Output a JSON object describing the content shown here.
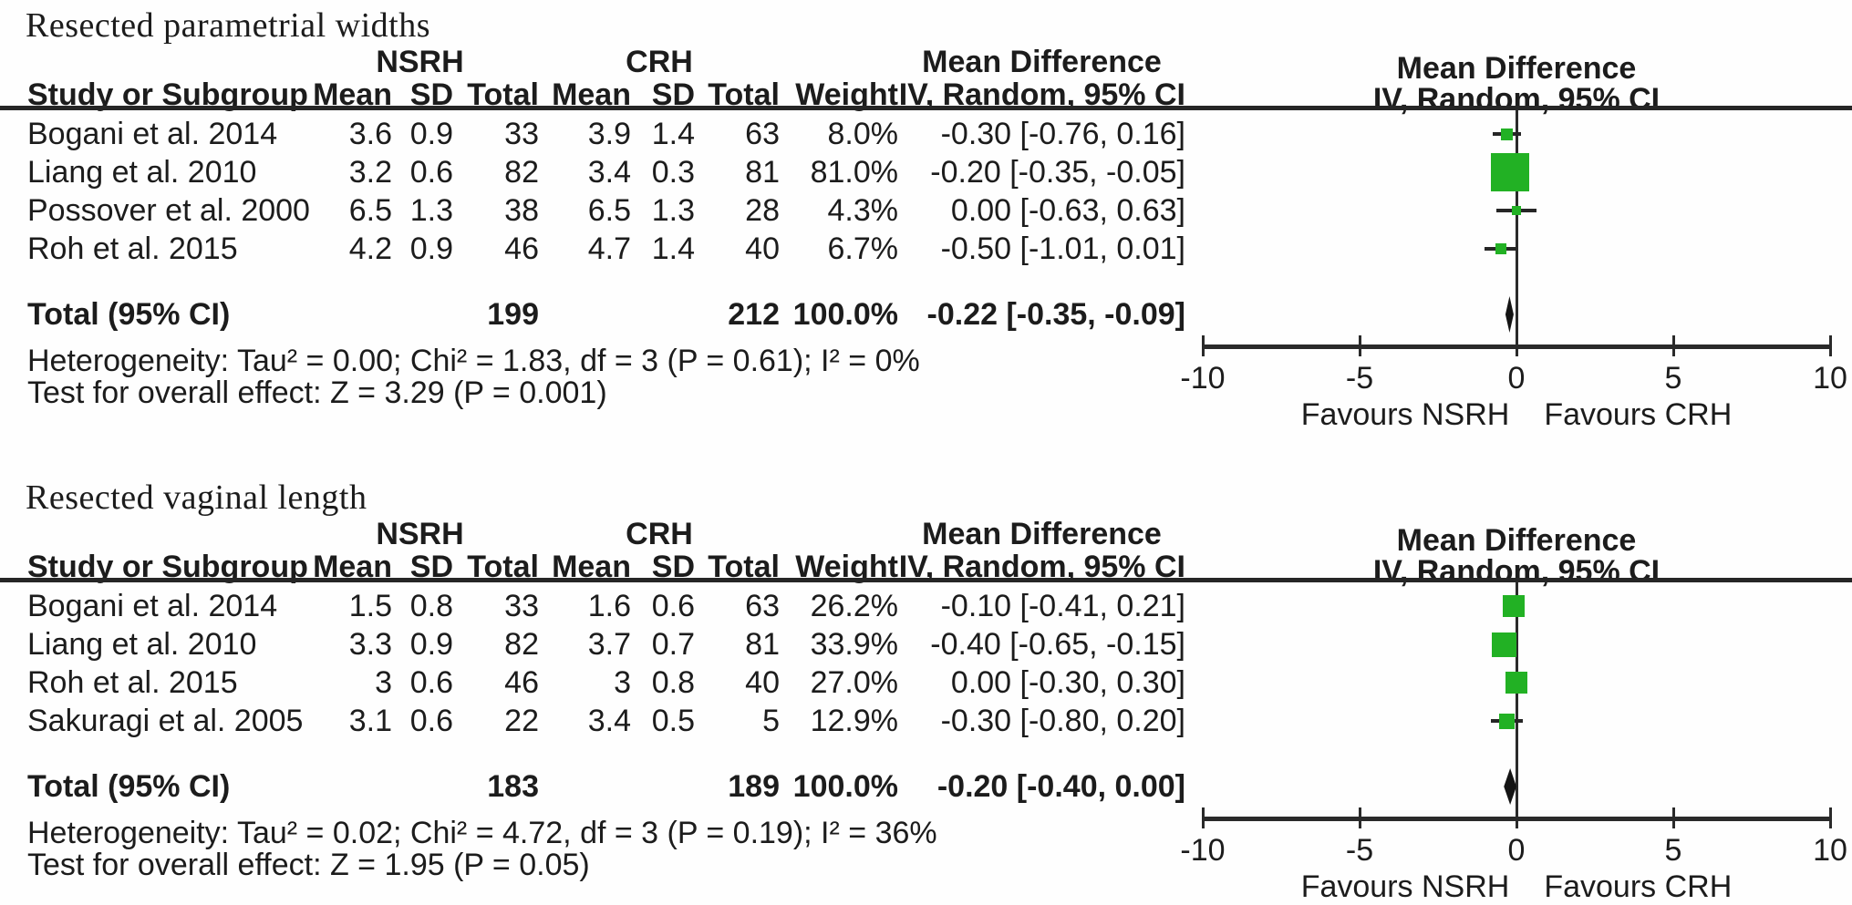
{
  "colors": {
    "marker_green": "#22b124",
    "diamond_black": "#141414",
    "line_dark": "#262626"
  },
  "chart_data": [
    {
      "type": "forest",
      "section_title": "Resected parametrial widths",
      "headers": {
        "group1": "NSRH",
        "group2": "CRH",
        "study": "Study or Subgroup",
        "mean": "Mean",
        "sd": "SD",
        "total": "Total",
        "weight": "Weight",
        "effect_title": "Mean Difference",
        "effect_sub": "IV, Random, 95% CI",
        "plot_title": "Mean Difference",
        "plot_sub": "IV, Random, 95% CI"
      },
      "x_axis": {
        "min": -10,
        "max": 10,
        "ticks": [
          -10,
          -5,
          0,
          5,
          10
        ],
        "label_left": "Favours NSRH",
        "label_right": "Favours CRH"
      },
      "studies": [
        {
          "study": "Bogani et al. 2014",
          "nsrh_mean": 3.6,
          "nsrh_sd": 0.9,
          "nsrh_total": 33,
          "crh_mean": 3.9,
          "crh_sd": 1.4,
          "crh_total": 63,
          "weight_pct": 8.0,
          "weight_label": "8.0%",
          "md": -0.3,
          "ci_low": -0.76,
          "ci_high": 0.16,
          "effect_label": "-0.30 [-0.76, 0.16]"
        },
        {
          "study": "Liang et al. 2010",
          "nsrh_mean": 3.2,
          "nsrh_sd": 0.6,
          "nsrh_total": 82,
          "crh_mean": 3.4,
          "crh_sd": 0.3,
          "crh_total": 81,
          "weight_pct": 81.0,
          "weight_label": "81.0%",
          "md": -0.2,
          "ci_low": -0.35,
          "ci_high": -0.05,
          "effect_label": "-0.20 [-0.35, -0.05]"
        },
        {
          "study": "Possover et al. 2000",
          "nsrh_mean": 6.5,
          "nsrh_sd": 1.3,
          "nsrh_total": 38,
          "crh_mean": 6.5,
          "crh_sd": 1.3,
          "crh_total": 28,
          "weight_pct": 4.3,
          "weight_label": "4.3%",
          "md": 0.0,
          "ci_low": -0.63,
          "ci_high": 0.63,
          "effect_label": "0.00 [-0.63, 0.63]"
        },
        {
          "study": "Roh et al. 2015",
          "nsrh_mean": 4.2,
          "nsrh_sd": 0.9,
          "nsrh_total": 46,
          "crh_mean": 4.7,
          "crh_sd": 1.4,
          "crh_total": 40,
          "weight_pct": 6.7,
          "weight_label": "6.7%",
          "md": -0.5,
          "ci_low": -1.01,
          "ci_high": 0.01,
          "effect_label": "-0.50 [-1.01, 0.01]"
        }
      ],
      "total": {
        "label": "Total (95% CI)",
        "nsrh_total": 199,
        "crh_total": 212,
        "weight_label": "100.0%",
        "md": -0.22,
        "ci_low": -0.35,
        "ci_high": -0.09,
        "effect_label": "-0.22 [-0.35, -0.09]"
      },
      "heterogeneity": "Heterogeneity: Tau² = 0.00; Chi² = 1.83, df = 3 (P = 0.61); I² = 0%",
      "overall_effect": "Test for overall effect: Z = 3.29 (P = 0.001)"
    },
    {
      "type": "forest",
      "section_title": "Resected vaginal length",
      "headers": {
        "group1": "NSRH",
        "group2": "CRH",
        "study": "Study or Subgroup",
        "mean": "Mean",
        "sd": "SD",
        "total": "Total",
        "weight": "Weight",
        "effect_title": "Mean Difference",
        "effect_sub": "IV, Random, 95% CI",
        "plot_title": "Mean Difference",
        "plot_sub": "IV, Random, 95% CI"
      },
      "x_axis": {
        "min": -10,
        "max": 10,
        "ticks": [
          -10,
          -5,
          0,
          5,
          10
        ],
        "label_left": "Favours NSRH",
        "label_right": "Favours CRH"
      },
      "studies": [
        {
          "study": "Bogani et al. 2014",
          "nsrh_mean": 1.5,
          "nsrh_sd": 0.8,
          "nsrh_total": 33,
          "crh_mean": 1.6,
          "crh_sd": 0.6,
          "crh_total": 63,
          "weight_pct": 26.2,
          "weight_label": "26.2%",
          "md": -0.1,
          "ci_low": -0.41,
          "ci_high": 0.21,
          "effect_label": "-0.10 [-0.41, 0.21]"
        },
        {
          "study": "Liang et al. 2010",
          "nsrh_mean": 3.3,
          "nsrh_sd": 0.9,
          "nsrh_total": 82,
          "crh_mean": 3.7,
          "crh_sd": 0.7,
          "crh_total": 81,
          "weight_pct": 33.9,
          "weight_label": "33.9%",
          "md": -0.4,
          "ci_low": -0.65,
          "ci_high": -0.15,
          "effect_label": "-0.40 [-0.65, -0.15]"
        },
        {
          "study": "Roh et al. 2015",
          "nsrh_mean": 3,
          "nsrh_sd": 0.6,
          "nsrh_total": 46,
          "crh_mean": 3,
          "crh_sd": 0.8,
          "crh_total": 40,
          "weight_pct": 27.0,
          "weight_label": "27.0%",
          "md": 0.0,
          "ci_low": -0.3,
          "ci_high": 0.3,
          "effect_label": "0.00 [-0.30, 0.30]"
        },
        {
          "study": "Sakuragi et al. 2005",
          "nsrh_mean": 3.1,
          "nsrh_sd": 0.6,
          "nsrh_total": 22,
          "crh_mean": 3.4,
          "crh_sd": 0.5,
          "crh_total": 5,
          "weight_pct": 12.9,
          "weight_label": "12.9%",
          "md": -0.3,
          "ci_low": -0.8,
          "ci_high": 0.2,
          "effect_label": "-0.30 [-0.80, 0.20]"
        }
      ],
      "total": {
        "label": "Total (95% CI)",
        "nsrh_total": 183,
        "crh_total": 189,
        "weight_label": "100.0%",
        "md": -0.2,
        "ci_low": -0.4,
        "ci_high": 0.0,
        "effect_label": "-0.20 [-0.40, 0.00]"
      },
      "heterogeneity": "Heterogeneity: Tau² = 0.02; Chi² = 4.72, df = 3 (P = 0.19); I² = 36%",
      "overall_effect": "Test for overall effect: Z = 1.95 (P = 0.05)"
    }
  ]
}
